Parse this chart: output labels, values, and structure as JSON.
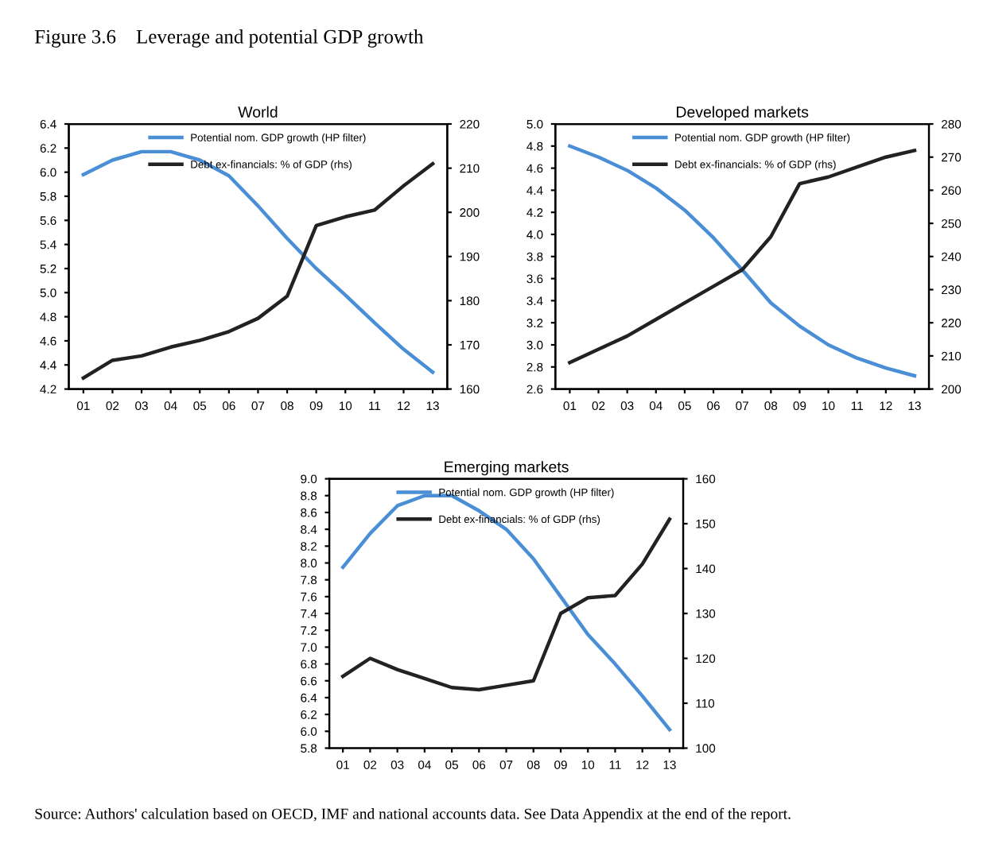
{
  "chart_data": [
    {
      "type": "line",
      "title": "World",
      "annotations": [
        "Figure 3.6    Leverage and potential GDP growth"
      ],
      "categories": [
        "01",
        "02",
        "03",
        "04",
        "05",
        "06",
        "07",
        "08",
        "09",
        "10",
        "11",
        "12",
        "13"
      ],
      "series": [
        {
          "name": "Potential nom. GDP growth (HP filter)",
          "color": "#4a8fd6",
          "values": [
            5.98,
            6.1,
            6.17,
            6.17,
            6.1,
            5.97,
            5.72,
            5.45,
            5.2,
            4.98,
            4.75,
            4.53,
            4.34
          ]
        },
        {
          "name": "Debt ex-financials: % of GDP (rhs)",
          "color": "#222222",
          "axis": "y2",
          "values": [
            162.5,
            166.5,
            167.5,
            169.5,
            171,
            173,
            176,
            181,
            197,
            199,
            200.5,
            206,
            211
          ]
        }
      ],
      "ylim": [
        4.2,
        6.4
      ],
      "yticks": [
        {
          "value": 4.2,
          "label": "4.2"
        },
        {
          "value": 4.4,
          "label": "4.4"
        },
        {
          "value": 4.6,
          "label": "4.6"
        },
        {
          "value": 4.8,
          "label": "4.8"
        },
        {
          "value": 5.0,
          "label": "5.0"
        },
        {
          "value": 5.2,
          "label": "5.2"
        },
        {
          "value": 5.4,
          "label": "5.4"
        },
        {
          "value": 5.6,
          "label": "5.6"
        },
        {
          "value": 5.8,
          "label": "5.8"
        },
        {
          "value": 6.0,
          "label": "6.0"
        },
        {
          "value": 6.2,
          "label": "6.2"
        },
        {
          "value": 6.4,
          "label": "6.4"
        }
      ],
      "y2lim": [
        160,
        220
      ],
      "y2ticks": [
        160,
        170,
        180,
        190,
        200,
        210,
        220
      ],
      "legend": "top",
      "marker": "none",
      "line_style": "solid",
      "grid": false
    },
    {
      "type": "line",
      "title": "Developed markets",
      "categories": [
        "01",
        "02",
        "03",
        "04",
        "05",
        "06",
        "07",
        "08",
        "09",
        "10",
        "11",
        "12",
        "13"
      ],
      "series": [
        {
          "name": "Potential nom. GDP growth (HP filter)",
          "color": "#4a8fd6",
          "values": [
            4.8,
            4.7,
            4.58,
            4.42,
            4.22,
            3.97,
            3.68,
            3.38,
            3.17,
            3.0,
            2.88,
            2.79,
            2.72
          ]
        },
        {
          "name": "Debt ex-financials: % of GDP (rhs)",
          "color": "#222222",
          "axis": "y2",
          "values": [
            208,
            212,
            216,
            221,
            226,
            231,
            236,
            246,
            262,
            264,
            267,
            270,
            272
          ]
        }
      ],
      "ylim": [
        2.6,
        5.0
      ],
      "yticks": [
        {
          "value": 2.6,
          "label": "2.6"
        },
        {
          "value": 2.8,
          "label": "2.8"
        },
        {
          "value": 3.0,
          "label": "3.0"
        },
        {
          "value": 3.2,
          "label": "3.2"
        },
        {
          "value": 3.4,
          "label": "3.4"
        },
        {
          "value": 3.6,
          "label": "3.6"
        },
        {
          "value": 3.8,
          "label": "3.8"
        },
        {
          "value": 4.0,
          "label": "4.0"
        },
        {
          "value": 4.2,
          "label": "4.2"
        },
        {
          "value": 4.4,
          "label": "4.4"
        },
        {
          "value": 4.6,
          "label": "4.6"
        },
        {
          "value": 4.8,
          "label": "4.8"
        },
        {
          "value": 5.0,
          "label": "5.0"
        }
      ],
      "y2lim": [
        200,
        280
      ],
      "y2ticks": [
        200,
        210,
        220,
        230,
        240,
        250,
        260,
        270,
        280
      ],
      "legend": "top",
      "marker": "none",
      "line_style": "solid",
      "grid": false
    },
    {
      "type": "line",
      "title": "Emerging markets",
      "annotations": [
        "Source: Authors' calculation based on OECD, IMF and national accounts data. See Data Appendix at the end of the report."
      ],
      "categories": [
        "01",
        "02",
        "03",
        "04",
        "05",
        "06",
        "07",
        "08",
        "09",
        "10",
        "11",
        "12",
        "13"
      ],
      "series": [
        {
          "name": "Potential nom. GDP growth (HP filter)",
          "color": "#4a8fd6",
          "values": [
            7.95,
            8.35,
            8.68,
            8.8,
            8.8,
            8.62,
            8.4,
            8.05,
            7.6,
            7.15,
            6.8,
            6.42,
            6.02
          ]
        },
        {
          "name": "Debt ex-financials: % of GDP (rhs)",
          "color": "#222222",
          "axis": "y2",
          "values": [
            116,
            120,
            117.5,
            115.5,
            113.5,
            113,
            114,
            115,
            130,
            133.5,
            134,
            141,
            151
          ]
        }
      ],
      "ylim": [
        5.8,
        9.0
      ],
      "yticks": [
        {
          "value": 5.8,
          "label": "5.8"
        },
        {
          "value": 6.0,
          "label": "6.0"
        },
        {
          "value": 6.2,
          "label": "6.2"
        },
        {
          "value": 6.4,
          "label": "6.4"
        },
        {
          "value": 6.6,
          "label": "6.6"
        },
        {
          "value": 6.8,
          "label": "6.8"
        },
        {
          "value": 7.0,
          "label": "7.0"
        },
        {
          "value": 7.2,
          "label": "7.2"
        },
        {
          "value": 7.4,
          "label": "7.4"
        },
        {
          "value": 7.6,
          "label": "7.6"
        },
        {
          "value": 7.8,
          "label": "7.8"
        },
        {
          "value": 8.0,
          "label": "8.0"
        },
        {
          "value": 8.2,
          "label": "8.2"
        },
        {
          "value": 8.4,
          "label": "8.4"
        },
        {
          "value": 8.6,
          "label": "8.6"
        },
        {
          "value": 8.8,
          "label": "8.8"
        },
        {
          "value": 9.0,
          "label": "9.0"
        }
      ],
      "y2lim": [
        100,
        160
      ],
      "y2ticks": [
        100,
        110,
        120,
        130,
        140,
        150,
        160
      ],
      "legend": "top",
      "marker": "none",
      "line_style": "solid",
      "grid": false
    }
  ]
}
